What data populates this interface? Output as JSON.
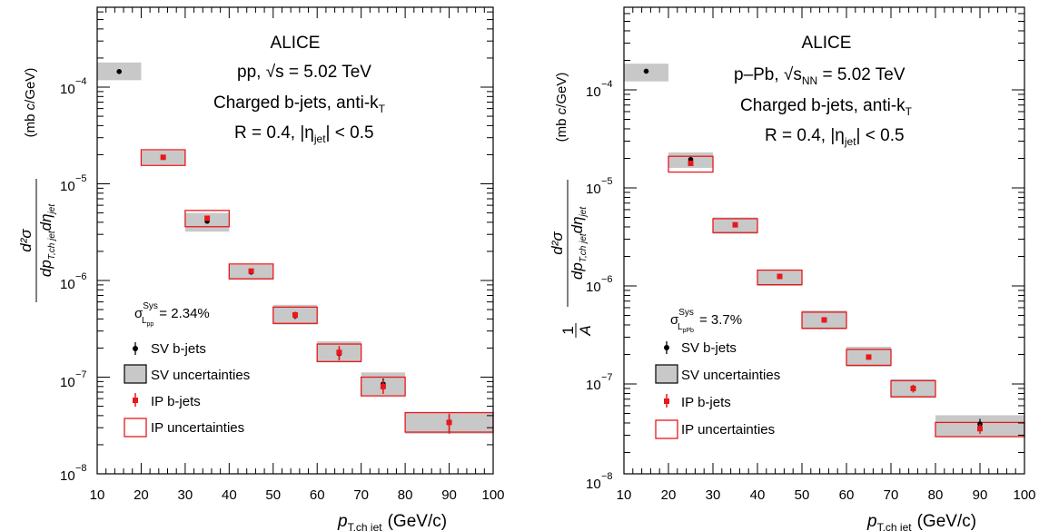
{
  "colors": {
    "sv_marker": "#000000",
    "sv_band": "#c8c8c8",
    "ip": "#e8181b",
    "axis": "#000000"
  },
  "x_axis": {
    "title_p": "p",
    "title_sub": "T,ch jet",
    "title_unit": "(GeV/c)"
  },
  "y_tick_labels": {
    "e8": "10",
    "e7": "10",
    "e6": "10",
    "e5": "10",
    "e4": "10",
    "exp8": "−8",
    "exp7": "−7",
    "exp6": "−6",
    "exp5": "−5",
    "exp4": "−4"
  },
  "legend": {
    "sv_marker": "SV b-jets",
    "sv_band": "SV uncertainties",
    "ip_marker": "IP b-jets",
    "ip_band": "IP uncertainties"
  },
  "chart_data": [
    {
      "type": "scatter",
      "panel": "left",
      "annotations": {
        "experiment": "ALICE",
        "system": "pp, √s = 5.02 TeV",
        "jets": "Charged b-jets, anti-k",
        "jets_sub": "T",
        "cuts": "R = 0.4, |η",
        "cuts_sub": "jet",
        "cuts_tail": "| < 0.5",
        "lumi_sigma": "σ",
        "lumi_sup": "Sys",
        "lumi_sub": "L",
        "lumi_subsub": "pp",
        "lumi_value": "= 2.34%"
      },
      "ylabel": "d²σ / dp_T,ch jet dη_jet (mb c/GeV)",
      "xlabel": "p_T,ch jet (GeV/c)",
      "xlim": [
        10,
        100
      ],
      "ylim": [
        1e-08,
        0.0006
      ],
      "yscale": "log",
      "x_ticks": [
        10,
        20,
        30,
        40,
        50,
        60,
        70,
        80,
        90,
        100
      ],
      "series": [
        {
          "name": "SV b-jets",
          "x": [
            15,
            25,
            35,
            45,
            55,
            65,
            75,
            90
          ],
          "y": [
            0.000145,
            1.88e-05,
            4.1e-06,
            1.22e-06,
            4.3e-07,
            1.75e-07,
            8.5e-08,
            3.4e-08
          ],
          "stat": [
            5e-06,
            6e-07,
            1.5e-07,
            5e-08,
            3e-08,
            2.5e-08,
            1.2e-08,
            7e-09
          ],
          "sys_band": [
            [
              10,
              20,
              0.000118,
              0.00018
            ],
            [
              20,
              30,
              1.58e-05,
              2.2e-05
            ],
            [
              30,
              40,
              3.2e-06,
              5e-06
            ],
            [
              40,
              50,
              1.02e-06,
              1.45e-06
            ],
            [
              50,
              60,
              3.5e-07,
              5.6e-07
            ],
            [
              60,
              70,
              1.42e-07,
              2.35e-07
            ],
            [
              70,
              80,
              6.5e-08,
              1.12e-07
            ],
            [
              80,
              100,
              2.6e-08,
              4.3e-08
            ]
          ]
        },
        {
          "name": "IP b-jets",
          "x": [
            25,
            35,
            45,
            55,
            65,
            75,
            90
          ],
          "y": [
            1.88e-05,
            4.4e-06,
            1.25e-06,
            4.4e-07,
            1.8e-07,
            8e-08,
            3.4e-08
          ],
          "stat": [
            6e-07,
            2e-07,
            6e-08,
            3.5e-08,
            3e-08,
            1.3e-08,
            8e-09
          ],
          "sys_band": [
            [
              20,
              30,
              1.55e-05,
              2.25e-05
            ],
            [
              30,
              40,
              3.6e-06,
              5.3e-06
            ],
            [
              40,
              50,
              1.04e-06,
              1.48e-06
            ],
            [
              50,
              60,
              3.6e-07,
              5.3e-07
            ],
            [
              60,
              70,
              1.45e-07,
              2.2e-07
            ],
            [
              70,
              80,
              6.4e-08,
              1e-07
            ],
            [
              80,
              100,
              2.7e-08,
              4.3e-08
            ]
          ]
        }
      ]
    },
    {
      "type": "scatter",
      "panel": "right",
      "annotations": {
        "experiment": "ALICE",
        "system": "p–Pb, √s",
        "system_sub": "NN",
        "system_tail": " = 5.02 TeV",
        "jets": "Charged b-jets, anti-k",
        "jets_sub": "T",
        "cuts": "R = 0.4, |η",
        "cuts_sub": "jet",
        "cuts_tail": "| < 0.5",
        "lumi_sigma": "σ",
        "lumi_sup": "Sys",
        "lumi_sub": "L",
        "lumi_subsub": "pPb",
        "lumi_value": "= 3.7%"
      },
      "ylabel": "1/A d²σ / dp_T,ch jet dη_jet (mb c/GeV)",
      "xlabel": "p_T,ch jet (GeV/c)",
      "xlim": [
        10,
        100
      ],
      "ylim": [
        1e-08,
        0.0006
      ],
      "yscale": "log",
      "x_ticks": [
        10,
        20,
        30,
        40,
        50,
        60,
        70,
        80,
        90,
        100
      ],
      "series": [
        {
          "name": "SV b-jets",
          "x": [
            15,
            25,
            35,
            45,
            55,
            65,
            75,
            90
          ],
          "y": [
            0.000155,
            1.95e-05,
            4.2e-06,
            1.25e-06,
            4.5e-07,
            1.88e-07,
            9e-08,
            3.9e-08
          ],
          "stat": [
            5e-06,
            8e-07,
            1.5e-07,
            5e-08,
            2e-08,
            1e-08,
            8e-09,
            5e-09
          ],
          "sys_band": [
            [
              10,
              20,
              0.000122,
              0.000185
            ],
            [
              20,
              30,
              1.6e-05,
              2.3e-05
            ],
            [
              30,
              40,
              3.4e-06,
              5e-06
            ],
            [
              40,
              50,
              1e-06,
              1.45e-06
            ],
            [
              50,
              60,
              3.6e-07,
              5.6e-07
            ],
            [
              60,
              70,
              1.5e-07,
              2.4e-07
            ],
            [
              70,
              80,
              7.2e-08,
              1.12e-07
            ],
            [
              80,
              100,
              2.9e-08,
              4.8e-08
            ]
          ]
        },
        {
          "name": "IP b-jets",
          "x": [
            25,
            35,
            45,
            55,
            65,
            75,
            90
          ],
          "y": [
            1.78e-05,
            4.2e-06,
            1.25e-06,
            4.5e-07,
            1.88e-07,
            9e-08,
            3.5e-08
          ],
          "stat": [
            8e-07,
            1.5e-07,
            5e-08,
            2e-08,
            1e-08,
            8e-09,
            4e-09
          ],
          "sys_band": [
            [
              20,
              30,
              1.45e-05,
              2.1e-05
            ],
            [
              30,
              40,
              3.5e-06,
              4.85e-06
            ],
            [
              40,
              50,
              1.03e-06,
              1.45e-06
            ],
            [
              50,
              60,
              3.7e-07,
              5.4e-07
            ],
            [
              60,
              70,
              1.55e-07,
              2.25e-07
            ],
            [
              70,
              80,
              7.4e-08,
              1.08e-07
            ],
            [
              80,
              100,
              2.9e-08,
              4.05e-08
            ]
          ]
        }
      ]
    }
  ]
}
